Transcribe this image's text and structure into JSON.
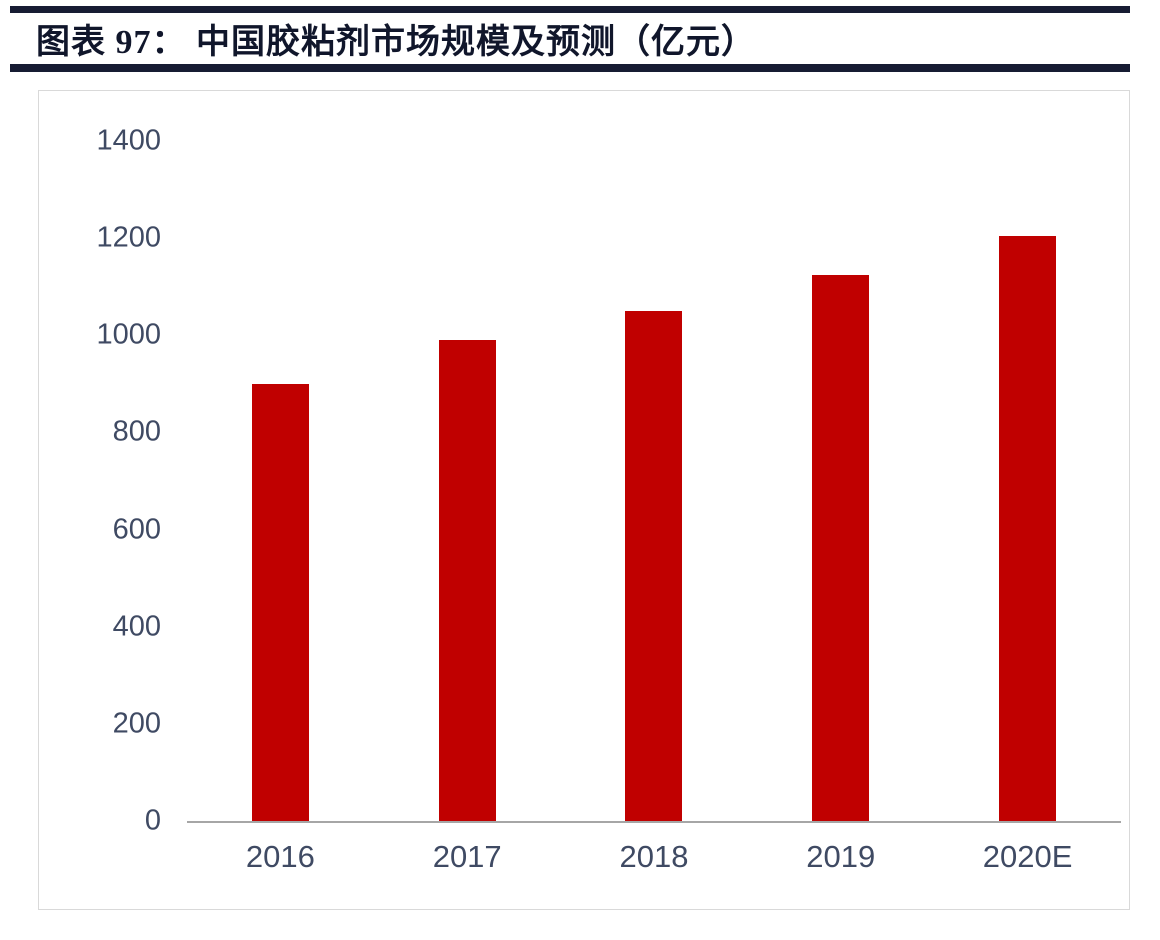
{
  "header": {
    "title": "图表 97： 中国胶粘剂市场规模及预测（亿元）"
  },
  "colors": {
    "bar": "#c00000",
    "rule": "#171c33",
    "title_text": "#10162b",
    "axis_text": "#3f4a63",
    "axis_line": "#a6a6a6",
    "frame_border": "#d9d9d9"
  },
  "chart_data": {
    "type": "bar",
    "title": "中国胶粘剂市场规模及预测（亿元）",
    "categories": [
      "2016",
      "2017",
      "2018",
      "2019",
      "2020E"
    ],
    "values": [
      900,
      990,
      1050,
      1125,
      1205
    ],
    "xlabel": "",
    "ylabel": "",
    "ylim": [
      0,
      1400
    ],
    "yticks": [
      0,
      200,
      400,
      600,
      800,
      1000,
      1200,
      1400
    ],
    "grid": false,
    "legend": null,
    "bar_color": "#c00000"
  }
}
